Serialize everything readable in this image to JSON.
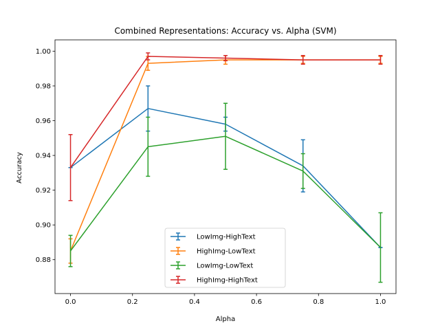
{
  "chart_data": {
    "type": "line",
    "title": "Combined Representations: Accuracy vs. Alpha (SVM)",
    "xlabel": "Alpha",
    "ylabel": "Accuracy",
    "xlim": [
      -0.05,
      1.05
    ],
    "ylim": [
      0.8605,
      1.0065
    ],
    "x_ticks": [
      "0.0",
      "0.2",
      "0.4",
      "0.6",
      "0.8",
      "1.0"
    ],
    "x_tick_values": [
      0.0,
      0.2,
      0.4,
      0.6,
      0.8,
      1.0
    ],
    "y_ticks": [
      "0.88",
      "0.90",
      "0.92",
      "0.94",
      "0.96",
      "0.98",
      "1.00"
    ],
    "y_tick_values": [
      0.88,
      0.9,
      0.92,
      0.94,
      0.96,
      0.98,
      1.0
    ],
    "grid": false,
    "legend_position": "lower-center",
    "x": [
      0.0,
      0.25,
      0.5,
      0.75,
      1.0
    ],
    "series": [
      {
        "name": "LowImg-HighText",
        "color": "#1f77b4",
        "values": [
          0.933,
          0.967,
          0.958,
          0.934,
          0.887
        ],
        "errors": [
          0.0,
          0.013,
          0.004,
          0.015,
          0.0
        ]
      },
      {
        "name": "HighImg-LowText",
        "color": "#ff7f0e",
        "values": [
          0.885,
          0.993,
          0.995,
          0.995,
          0.995
        ],
        "errors": [
          0.007,
          0.004,
          0.0025,
          0.002,
          0.002
        ]
      },
      {
        "name": "LowImg-LowText",
        "color": "#2ca02c",
        "values": [
          0.885,
          0.945,
          0.951,
          0.931,
          0.887
        ],
        "errors": [
          0.009,
          0.017,
          0.019,
          0.01,
          0.02
        ]
      },
      {
        "name": "HighImg-HighText",
        "color": "#d62728",
        "values": [
          0.933,
          0.997,
          0.996,
          0.995,
          0.995
        ],
        "errors": [
          0.019,
          0.002,
          0.0015,
          0.0025,
          0.0025
        ]
      }
    ]
  }
}
